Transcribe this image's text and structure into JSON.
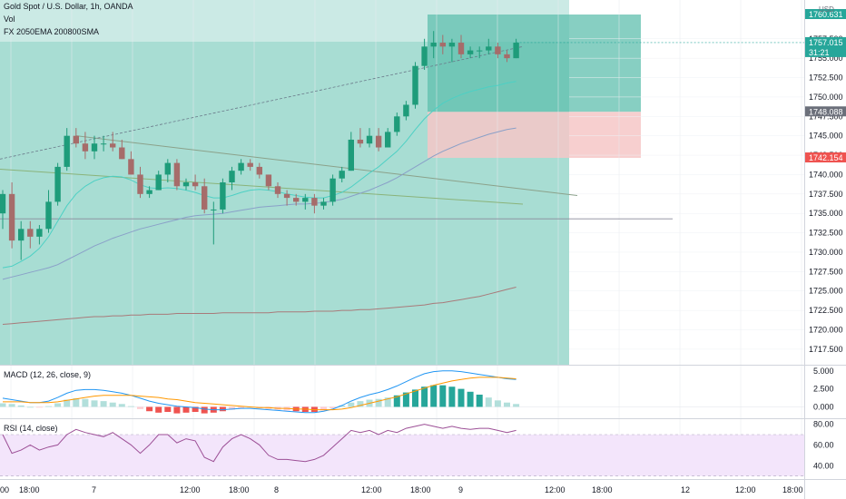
{
  "header": {
    "title": "Gold Spot / U.S. Dollar, 1h, OANDA",
    "vol_label": "Vol",
    "indicator_label": "FX 2050EMA 200800SMA",
    "currency": "USD"
  },
  "macd_label": "MACD (12, 26, close, 9)",
  "rsi_label": "RSI (14, close)",
  "colors": {
    "up": "#26a69a",
    "down": "#ef5350",
    "up_body": "#1e9c7a",
    "down_body": "#a66c6a",
    "zone_bg": "#a8ddd3",
    "zone_top": "#cbeae5",
    "profit_box": "#5fbfae",
    "loss_box": "#f6c7c7",
    "ema20": "#4dd0c4",
    "ema50": "#8aa0c8",
    "sma800": "#a87a7a",
    "macd_line": "#2196f3",
    "signal_line": "#ff9800",
    "rsi_line": "#9c4f96",
    "rsi_band": "#f3e5fb",
    "trend_lines": "#8ba18a"
  },
  "price_axis": {
    "ticks": [
      "1757.500",
      "1755.000",
      "1752.500",
      "1750.000",
      "1747.500",
      "1745.000",
      "1742.500",
      "1740.000",
      "1737.500",
      "1735.000",
      "1732.500",
      "1730.000",
      "1727.500",
      "1725.000",
      "1722.500",
      "1720.000",
      "1717.500"
    ],
    "badges": [
      {
        "value": "1760.631",
        "color": "#26a69a"
      },
      {
        "value": "1757.015",
        "sub": "31:21",
        "color": "#26a69a"
      },
      {
        "value": "1748.088",
        "color": "#6b6f7a"
      },
      {
        "value": "1742.154",
        "color": "#ef5350"
      }
    ]
  },
  "macd_axis": [
    "5.000",
    "2.500",
    "0.000"
  ],
  "rsi_axis": [
    "80.00",
    "60.00",
    "40.00"
  ],
  "time_axis": [
    "00",
    "18:00",
    "7",
    "12:00",
    "18:00",
    "8",
    "12:00",
    "18:00",
    "9",
    "12:00",
    "18:00",
    "12",
    "12:00",
    "18:00"
  ],
  "chart_data": {
    "type": "candlestick",
    "title": "Gold Spot / U.S. Dollar, 1h, OANDA",
    "ylim": [
      1715.5,
      1762.5
    ],
    "candles": [
      {
        "o": 1735.0,
        "h": 1738.0,
        "l": 1733.0,
        "c": 1737.5
      },
      {
        "o": 1737.5,
        "h": 1739.0,
        "l": 1730.5,
        "c": 1731.5
      },
      {
        "o": 1731.5,
        "h": 1734.0,
        "l": 1729.0,
        "c": 1733.0
      },
      {
        "o": 1733.0,
        "h": 1734.0,
        "l": 1730.5,
        "c": 1732.0
      },
      {
        "o": 1732.0,
        "h": 1733.5,
        "l": 1731.0,
        "c": 1733.0
      },
      {
        "o": 1733.0,
        "h": 1738.0,
        "l": 1732.5,
        "c": 1736.5
      },
      {
        "o": 1736.5,
        "h": 1741.5,
        "l": 1736.0,
        "c": 1741.0
      },
      {
        "o": 1741.0,
        "h": 1746.0,
        "l": 1740.5,
        "c": 1745.0
      },
      {
        "o": 1745.0,
        "h": 1746.0,
        "l": 1743.5,
        "c": 1744.0
      },
      {
        "o": 1744.0,
        "h": 1745.5,
        "l": 1742.0,
        "c": 1743.0
      },
      {
        "o": 1743.0,
        "h": 1745.0,
        "l": 1742.0,
        "c": 1744.0
      },
      {
        "o": 1744.0,
        "h": 1745.0,
        "l": 1743.0,
        "c": 1744.0
      },
      {
        "o": 1744.0,
        "h": 1745.5,
        "l": 1743.0,
        "c": 1743.5
      },
      {
        "o": 1743.5,
        "h": 1744.5,
        "l": 1742.0,
        "c": 1742.0
      },
      {
        "o": 1742.0,
        "h": 1743.0,
        "l": 1740.0,
        "c": 1740.0
      },
      {
        "o": 1740.0,
        "h": 1741.0,
        "l": 1737.0,
        "c": 1737.5
      },
      {
        "o": 1737.5,
        "h": 1738.5,
        "l": 1737.0,
        "c": 1738.0
      },
      {
        "o": 1738.0,
        "h": 1740.5,
        "l": 1738.0,
        "c": 1740.0
      },
      {
        "o": 1740.0,
        "h": 1742.0,
        "l": 1739.0,
        "c": 1741.5
      },
      {
        "o": 1741.5,
        "h": 1742.0,
        "l": 1738.0,
        "c": 1738.5
      },
      {
        "o": 1738.5,
        "h": 1739.5,
        "l": 1738.0,
        "c": 1739.0
      },
      {
        "o": 1739.0,
        "h": 1740.0,
        "l": 1738.0,
        "c": 1738.5
      },
      {
        "o": 1738.5,
        "h": 1739.5,
        "l": 1735.0,
        "c": 1735.5
      },
      {
        "o": 1735.5,
        "h": 1736.5,
        "l": 1731.0,
        "c": 1735.5
      },
      {
        "o": 1735.5,
        "h": 1739.5,
        "l": 1735.0,
        "c": 1739.0
      },
      {
        "o": 1739.0,
        "h": 1741.0,
        "l": 1738.0,
        "c": 1740.5
      },
      {
        "o": 1740.5,
        "h": 1742.0,
        "l": 1740.0,
        "c": 1741.5
      },
      {
        "o": 1741.5,
        "h": 1742.0,
        "l": 1740.5,
        "c": 1741.0
      },
      {
        "o": 1741.0,
        "h": 1741.5,
        "l": 1739.5,
        "c": 1740.0
      },
      {
        "o": 1740.0,
        "h": 1740.0,
        "l": 1738.0,
        "c": 1738.5
      },
      {
        "o": 1738.5,
        "h": 1739.0,
        "l": 1737.0,
        "c": 1737.5
      },
      {
        "o": 1737.5,
        "h": 1738.0,
        "l": 1736.0,
        "c": 1737.0
      },
      {
        "o": 1737.0,
        "h": 1737.5,
        "l": 1736.0,
        "c": 1736.5
      },
      {
        "o": 1736.5,
        "h": 1737.5,
        "l": 1735.5,
        "c": 1737.0
      },
      {
        "o": 1737.0,
        "h": 1737.5,
        "l": 1735.0,
        "c": 1736.0
      },
      {
        "o": 1736.0,
        "h": 1737.0,
        "l": 1735.5,
        "c": 1736.5
      },
      {
        "o": 1736.5,
        "h": 1740.0,
        "l": 1736.0,
        "c": 1739.5
      },
      {
        "o": 1739.5,
        "h": 1741.0,
        "l": 1739.0,
        "c": 1740.5
      },
      {
        "o": 1740.5,
        "h": 1745.5,
        "l": 1740.5,
        "c": 1744.5
      },
      {
        "o": 1744.5,
        "h": 1746.0,
        "l": 1743.5,
        "c": 1744.0
      },
      {
        "o": 1744.0,
        "h": 1746.0,
        "l": 1743.5,
        "c": 1745.0
      },
      {
        "o": 1745.0,
        "h": 1746.0,
        "l": 1743.0,
        "c": 1743.5
      },
      {
        "o": 1743.5,
        "h": 1746.0,
        "l": 1743.5,
        "c": 1745.5
      },
      {
        "o": 1745.5,
        "h": 1748.0,
        "l": 1745.0,
        "c": 1747.5
      },
      {
        "o": 1747.5,
        "h": 1749.5,
        "l": 1747.0,
        "c": 1749.0
      },
      {
        "o": 1749.0,
        "h": 1754.5,
        "l": 1748.5,
        "c": 1754.0
      },
      {
        "o": 1754.0,
        "h": 1757.5,
        "l": 1753.5,
        "c": 1756.5
      },
      {
        "o": 1756.5,
        "h": 1758.5,
        "l": 1755.0,
        "c": 1757.0
      },
      {
        "o": 1757.0,
        "h": 1758.0,
        "l": 1755.5,
        "c": 1756.5
      },
      {
        "o": 1756.5,
        "h": 1757.5,
        "l": 1754.5,
        "c": 1757.0
      },
      {
        "o": 1757.0,
        "h": 1758.0,
        "l": 1755.0,
        "c": 1755.5
      },
      {
        "o": 1755.5,
        "h": 1756.5,
        "l": 1755.0,
        "c": 1756.0
      },
      {
        "o": 1756.0,
        "h": 1756.5,
        "l": 1755.0,
        "c": 1756.0
      },
      {
        "o": 1756.0,
        "h": 1757.5,
        "l": 1755.5,
        "c": 1756.5
      },
      {
        "o": 1756.5,
        "h": 1757.0,
        "l": 1755.0,
        "c": 1755.5
      },
      {
        "o": 1755.5,
        "h": 1756.0,
        "l": 1754.5,
        "c": 1755.0
      },
      {
        "o": 1755.0,
        "h": 1757.5,
        "l": 1755.0,
        "c": 1757.0
      }
    ],
    "macd_hist": [
      0.5,
      0.4,
      0.2,
      0.0,
      -0.1,
      0.1,
      0.5,
      1.0,
      1.2,
      1.1,
      0.9,
      0.8,
      0.6,
      0.4,
      0.1,
      -0.3,
      -0.6,
      -0.8,
      -0.7,
      -0.9,
      -0.8,
      -0.7,
      -0.9,
      -0.8,
      -0.6,
      -0.4,
      -0.2,
      -0.1,
      -0.2,
      -0.3,
      -0.4,
      -0.5,
      -0.6,
      -0.7,
      -0.7,
      -0.5,
      -0.2,
      0.2,
      0.6,
      0.8,
      1.0,
      1.1,
      1.3,
      1.6,
      2.0,
      2.4,
      2.8,
      3.0,
      3.0,
      2.8,
      2.5,
      2.1,
      1.7,
      1.3,
      0.9,
      0.6,
      0.4
    ],
    "macd_line": [
      1.2,
      1.0,
      0.8,
      0.6,
      0.6,
      0.8,
      1.3,
      1.9,
      2.3,
      2.4,
      2.4,
      2.3,
      2.1,
      1.9,
      1.6,
      1.2,
      0.8,
      0.5,
      0.3,
      0.1,
      0.0,
      -0.1,
      -0.3,
      -0.4,
      -0.4,
      -0.3,
      -0.2,
      -0.2,
      -0.3,
      -0.4,
      -0.5,
      -0.6,
      -0.7,
      -0.8,
      -0.8,
      -0.6,
      -0.3,
      0.2,
      0.8,
      1.3,
      1.7,
      2.0,
      2.4,
      2.9,
      3.5,
      4.1,
      4.6,
      4.9,
      5.0,
      5.0,
      4.9,
      4.7,
      4.5,
      4.3,
      4.1,
      3.9,
      3.8
    ],
    "signal_line": [
      0.7,
      0.7,
      0.7,
      0.6,
      0.6,
      0.6,
      0.7,
      0.9,
      1.1,
      1.3,
      1.5,
      1.6,
      1.6,
      1.6,
      1.6,
      1.5,
      1.4,
      1.3,
      1.1,
      1.0,
      0.8,
      0.6,
      0.5,
      0.4,
      0.3,
      0.2,
      0.1,
      0.0,
      -0.1,
      -0.1,
      -0.2,
      -0.2,
      -0.3,
      -0.3,
      -0.4,
      -0.4,
      -0.4,
      -0.3,
      -0.1,
      0.2,
      0.5,
      0.8,
      1.1,
      1.4,
      1.8,
      2.2,
      2.6,
      3.0,
      3.3,
      3.6,
      3.8,
      4.0,
      4.1,
      4.1,
      4.1,
      4.0,
      3.9
    ],
    "rsi": [
      70,
      52,
      55,
      60,
      55,
      58,
      60,
      70,
      75,
      72,
      70,
      68,
      72,
      66,
      60,
      52,
      60,
      70,
      70,
      62,
      66,
      64,
      48,
      44,
      58,
      66,
      70,
      66,
      60,
      50,
      46,
      46,
      45,
      44,
      46,
      50,
      58,
      66,
      74,
      72,
      74,
      70,
      74,
      72,
      76,
      78,
      80,
      78,
      76,
      78,
      76,
      75,
      76,
      76,
      74,
      72,
      74
    ],
    "ema20": [
      1728,
      1728.2,
      1728.8,
      1729.5,
      1730.5,
      1732,
      1734,
      1736,
      1737.5,
      1738.5,
      1739.2,
      1739.6,
      1739.8,
      1739.7,
      1739.3,
      1738.7,
      1738.3,
      1738.2,
      1738.3,
      1738.2,
      1738.0,
      1737.7,
      1737.3,
      1737.0,
      1737.0,
      1737.3,
      1737.7,
      1738.0,
      1738.1,
      1738.0,
      1737.8,
      1737.5,
      1737.3,
      1737.1,
      1737.0,
      1737.0,
      1737.3,
      1737.7,
      1738.4,
      1739.3,
      1740.2,
      1741.0,
      1742.0,
      1743.0,
      1744.3,
      1745.8,
      1747.2,
      1748.3,
      1749.2,
      1749.8,
      1750.3,
      1750.7,
      1751.0,
      1751.3,
      1751.5,
      1751.8,
      1752.0
    ],
    "ema50": [
      1726.5,
      1726.8,
      1727.1,
      1727.4,
      1727.7,
      1728.0,
      1728.4,
      1729.0,
      1729.6,
      1730.2,
      1730.8,
      1731.3,
      1731.8,
      1732.2,
      1732.6,
      1733.0,
      1733.3,
      1733.6,
      1733.9,
      1734.2,
      1734.5,
      1734.7,
      1734.8,
      1734.9,
      1735.0,
      1735.2,
      1735.4,
      1735.6,
      1735.8,
      1735.9,
      1736.0,
      1736.1,
      1736.2,
      1736.2,
      1736.3,
      1736.4,
      1736.6,
      1736.8,
      1737.2,
      1737.6,
      1738.0,
      1738.5,
      1739.0,
      1739.6,
      1740.3,
      1741.0,
      1741.7,
      1742.4,
      1743.0,
      1743.5,
      1744.0,
      1744.4,
      1744.8,
      1745.2,
      1745.5,
      1745.8,
      1746.0
    ],
    "sma800": [
      1720.7,
      1720.8,
      1720.9,
      1721.0,
      1721.1,
      1721.2,
      1721.3,
      1721.4,
      1721.5,
      1721.6,
      1721.7,
      1721.7,
      1721.8,
      1721.8,
      1721.9,
      1721.9,
      1722.0,
      1722.0,
      1722.0,
      1722.1,
      1722.1,
      1722.1,
      1722.1,
      1722.1,
      1722.2,
      1722.2,
      1722.2,
      1722.2,
      1722.2,
      1722.2,
      1722.3,
      1722.3,
      1722.3,
      1722.3,
      1722.4,
      1722.4,
      1722.4,
      1722.5,
      1722.5,
      1722.6,
      1722.6,
      1722.7,
      1722.8,
      1722.9,
      1723.0,
      1723.1,
      1723.2,
      1723.4,
      1723.5,
      1723.7,
      1723.9,
      1724.1,
      1724.3,
      1724.6,
      1724.9,
      1725.2,
      1725.5
    ],
    "position": {
      "entry": 1748.088,
      "target": 1760.631,
      "stop": 1742.154
    },
    "horizontal_level": 1734.3
  }
}
